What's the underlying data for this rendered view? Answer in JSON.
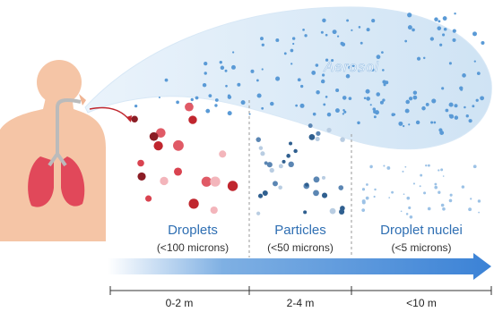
{
  "cloud": {
    "label": "Aerosol"
  },
  "zones": [
    {
      "name": "Droplets",
      "size": "(<100 microns)",
      "distance": "0-2 m"
    },
    {
      "name": "Particles",
      "size": "(<50 microns)",
      "distance": "2-4 m"
    },
    {
      "name": "Droplet nuclei",
      "size": "(<5 microns)",
      "distance": "<10 m"
    }
  ]
}
